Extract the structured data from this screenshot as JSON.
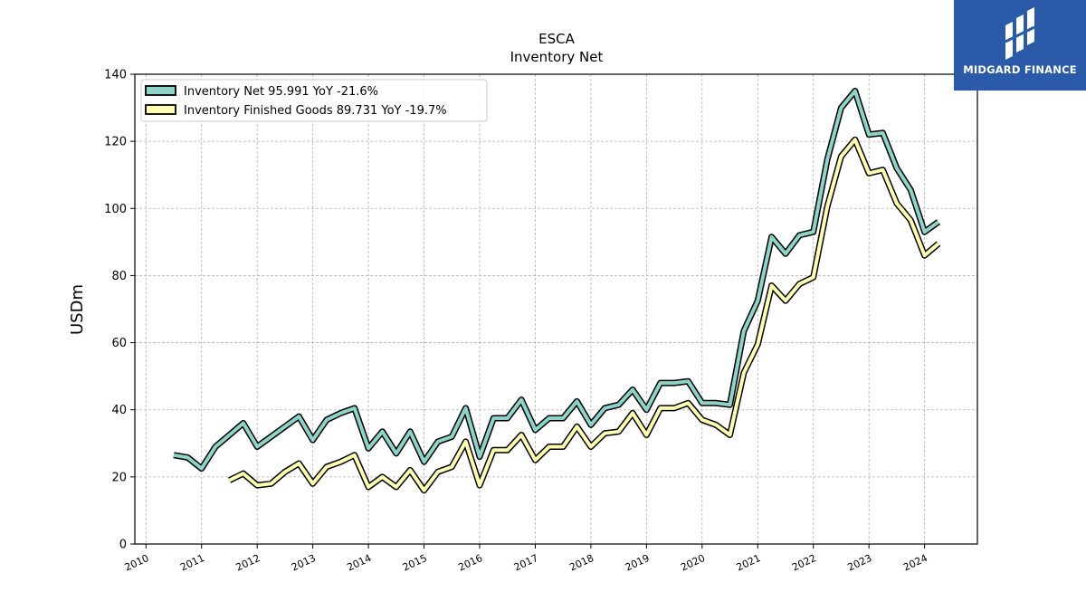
{
  "brand": {
    "name": "MIDGARD FINANCE",
    "color": "#2a5aa8",
    "icon": "midgard-logo-icon"
  },
  "chart_data": {
    "type": "line",
    "title": "ESCA",
    "subtitle": "Inventory Net",
    "xlabel": "",
    "ylabel": "USDm",
    "ylim": [
      0,
      140
    ],
    "xlim": [
      2009.8,
      2024.95
    ],
    "yticks": [
      0,
      20,
      40,
      60,
      80,
      100,
      120,
      140
    ],
    "xticks": [
      2010,
      2011,
      2012,
      2013,
      2014,
      2015,
      2016,
      2017,
      2018,
      2019,
      2020,
      2021,
      2022,
      2023,
      2024
    ],
    "grid": true,
    "legend_position": "top-left",
    "series": [
      {
        "name": "Inventory Net",
        "legend_label": "Inventory Net  95.991 YoY -21.6%",
        "color": "#8dd3c7",
        "x": [
          2010.5,
          2010.75,
          2011.0,
          2011.25,
          2011.5,
          2011.75,
          2012.0,
          2012.25,
          2012.5,
          2012.75,
          2013.0,
          2013.25,
          2013.5,
          2013.75,
          2014.0,
          2014.25,
          2014.5,
          2014.75,
          2015.0,
          2015.25,
          2015.5,
          2015.75,
          2016.0,
          2016.25,
          2016.5,
          2016.75,
          2017.0,
          2017.25,
          2017.5,
          2017.75,
          2018.0,
          2018.25,
          2018.5,
          2018.75,
          2019.0,
          2019.25,
          2019.5,
          2019.75,
          2020.0,
          2020.25,
          2020.5,
          2020.75,
          2021.0,
          2021.25,
          2021.5,
          2021.75,
          2022.0,
          2022.25,
          2022.5,
          2022.75,
          2023.0,
          2023.25,
          2023.5,
          2023.75,
          2024.0,
          2024.25
        ],
        "values": [
          26.5,
          25.8,
          22.5,
          29.0,
          32.5,
          36.0,
          29.0,
          32.0,
          35.0,
          38.0,
          31.0,
          37.0,
          39.0,
          40.5,
          28.5,
          33.5,
          27.0,
          33.5,
          24.5,
          30.5,
          32.0,
          40.5,
          26.0,
          37.5,
          37.5,
          43.0,
          34.0,
          37.5,
          37.5,
          42.5,
          35.5,
          40.5,
          41.5,
          46.0,
          40.0,
          48.0,
          48.0,
          48.5,
          42.0,
          42.0,
          41.5,
          63.5,
          72.5,
          91.5,
          86.5,
          92.0,
          93.0,
          114.5,
          130.0,
          135.0,
          122.0,
          122.5,
          112.0,
          105.5,
          93.0,
          96.0
        ]
      },
      {
        "name": "Inventory Finished Goods",
        "legend_label": "Inventory Finished Goods  89.731 YoY -19.7%",
        "color": "#ffffb3",
        "x": [
          2011.5,
          2011.75,
          2012.0,
          2012.25,
          2012.5,
          2012.75,
          2013.0,
          2013.25,
          2013.5,
          2013.75,
          2014.0,
          2014.25,
          2014.5,
          2014.75,
          2015.0,
          2015.25,
          2015.5,
          2015.75,
          2016.0,
          2016.25,
          2016.5,
          2016.75,
          2017.0,
          2017.25,
          2017.5,
          2017.75,
          2018.0,
          2018.25,
          2018.5,
          2018.75,
          2019.0,
          2019.25,
          2019.5,
          2019.75,
          2020.0,
          2020.25,
          2020.5,
          2020.75,
          2021.0,
          2021.25,
          2021.5,
          2021.75,
          2022.0,
          2022.25,
          2022.5,
          2022.75,
          2023.0,
          2023.25,
          2023.5,
          2023.75,
          2024.0,
          2024.25
        ],
        "values": [
          19.0,
          21.0,
          17.5,
          18.0,
          21.5,
          24.0,
          18.0,
          23.0,
          24.5,
          26.5,
          17.0,
          20.0,
          17.0,
          22.0,
          16.0,
          21.5,
          23.0,
          30.5,
          17.5,
          28.0,
          28.0,
          32.5,
          25.0,
          29.0,
          29.0,
          35.0,
          29.0,
          33.0,
          33.5,
          39.0,
          32.5,
          40.5,
          40.5,
          42.0,
          37.0,
          35.5,
          32.5,
          51.0,
          59.5,
          77.0,
          72.5,
          77.5,
          79.5,
          100.5,
          115.5,
          120.5,
          110.5,
          111.5,
          101.5,
          96.5,
          86.0,
          89.5
        ]
      }
    ]
  }
}
